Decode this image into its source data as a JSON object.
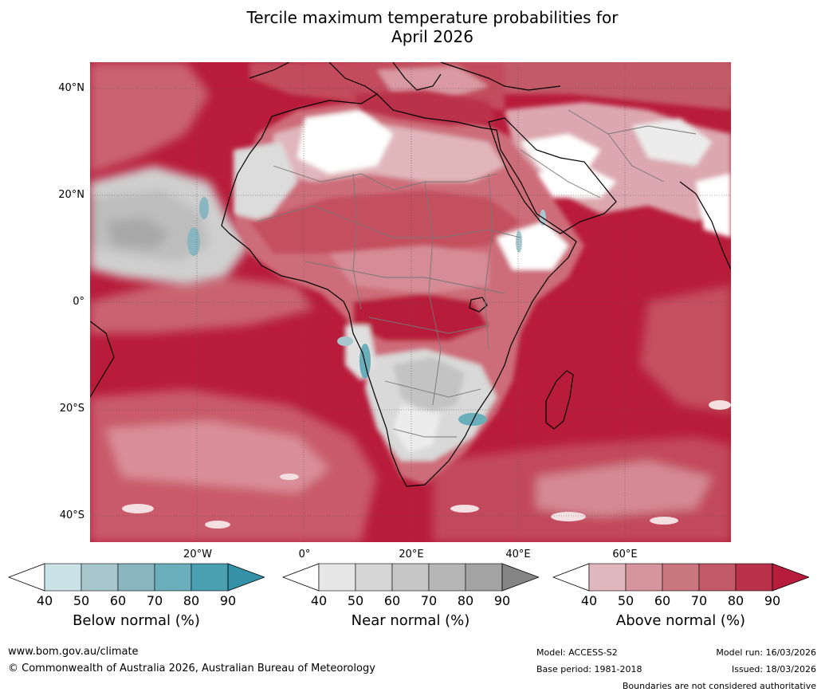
{
  "title": {
    "line1": "Tercile maximum temperature probabilities for",
    "line2": "April 2026"
  },
  "axes": {
    "lat_labels": [
      "40°N",
      "20°N",
      "0°",
      "20°S",
      "40°S"
    ],
    "lon_labels": [
      "20°W",
      "0°",
      "20°E",
      "40°E",
      "60°E"
    ]
  },
  "legend": {
    "below": {
      "title": "Below normal (%)",
      "ticks": [
        "40",
        "50",
        "60",
        "70",
        "80",
        "90"
      ],
      "colors": [
        "#ffffff",
        "#c9e1e7",
        "#a7c7cd",
        "#89b6c0",
        "#6aaebb",
        "#4a9fb1",
        "#3591a7"
      ]
    },
    "near": {
      "title": "Near normal (%)",
      "ticks": [
        "40",
        "50",
        "60",
        "70",
        "80",
        "90"
      ],
      "colors": [
        "#ffffff",
        "#e6e6e6",
        "#d6d6d6",
        "#c6c6c6",
        "#b6b6b6",
        "#a3a3a3",
        "#858585"
      ]
    },
    "above": {
      "title": "Above normal (%)",
      "ticks": [
        "40",
        "50",
        "60",
        "70",
        "80",
        "90"
      ],
      "colors": [
        "#ffffff",
        "#e1b8bd",
        "#d6949d",
        "#cb7780",
        "#c35a68",
        "#b9324a",
        "#b71c3a"
      ]
    }
  },
  "footer": {
    "website": "www.bom.gov.au/climate",
    "copyright": "© Commonwealth of Australia 2026, Australian Bureau of Meteorology",
    "model": "Model: ACCESS-S2",
    "base_period": "Base period: 1981-2018",
    "model_run": "Model run: 16/03/2026",
    "issued": "Issued: 18/03/2026",
    "disclaimer": "Boundaries are not considered authoritative"
  }
}
